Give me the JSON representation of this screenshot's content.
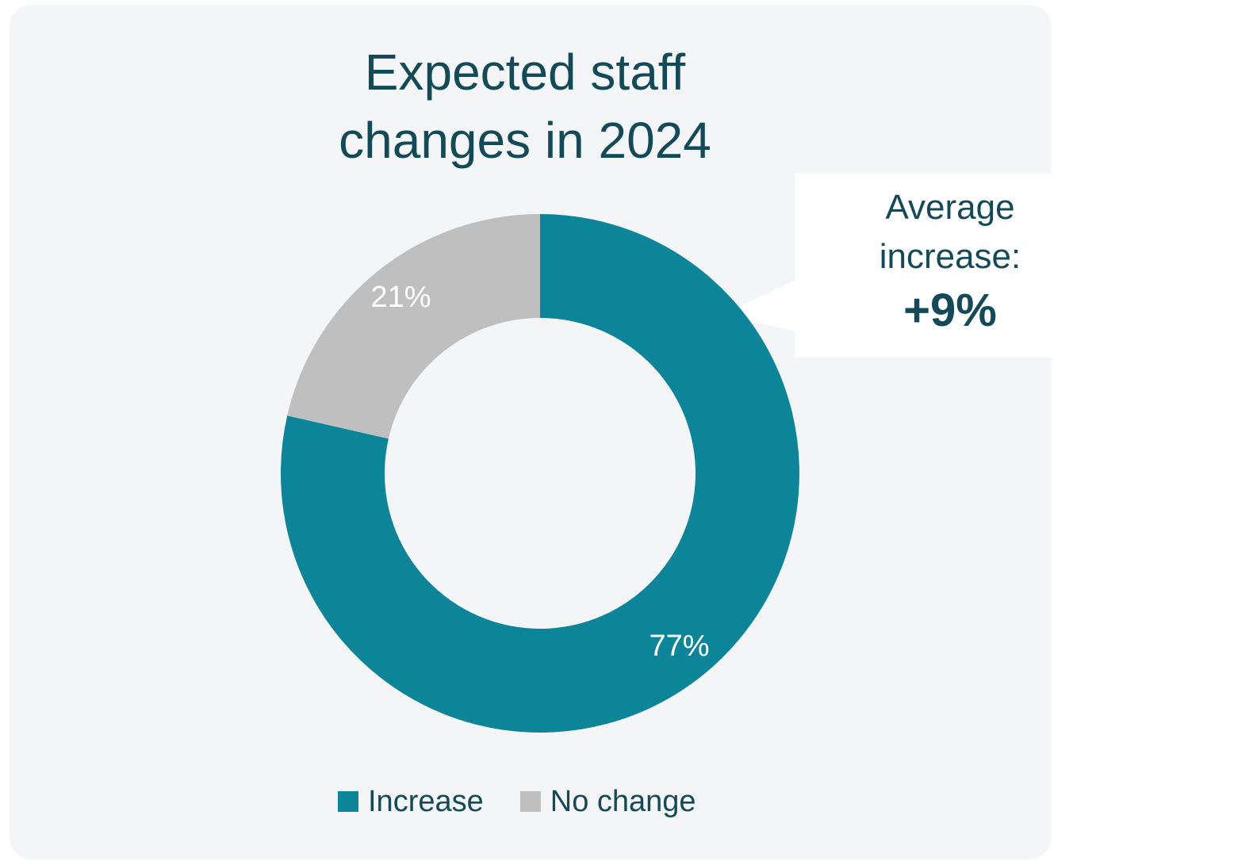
{
  "chart_data": {
    "type": "pie",
    "style": "donut",
    "title_lines": [
      "Expected staff",
      "changes in 2024"
    ],
    "categories": [
      "Increase",
      "No change"
    ],
    "values": [
      77,
      21
    ],
    "data_labels": [
      "77%",
      "21%"
    ],
    "colors": [
      "#0b8597",
      "#bfbfbf"
    ],
    "legend": {
      "placement": "bottom",
      "entries": [
        {
          "label": "Increase",
          "color": "#0b8597"
        },
        {
          "label": "No change",
          "color": "#bfbfbf"
        }
      ]
    },
    "annotation": {
      "line1": "Average",
      "line2": "increase:",
      "value": "+9%"
    }
  }
}
